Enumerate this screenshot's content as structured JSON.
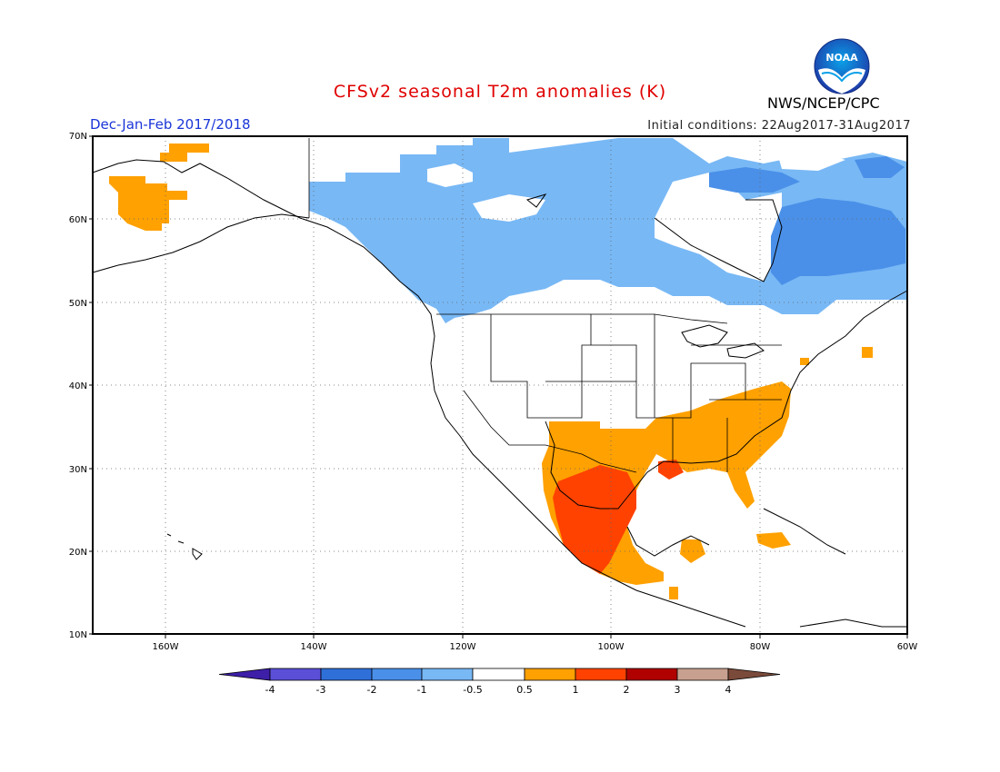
{
  "title": "CFSv2 seasonal T2m anomalies (K)",
  "period": "Dec-Jan-Feb 2017/2018",
  "initial_conditions": "Initial conditions: 22Aug2017-31Aug2017",
  "agency": "NWS/NCEP/CPC",
  "logo_text": "NOAA",
  "lat_labels": [
    "70N",
    "60N",
    "50N",
    "40N",
    "30N",
    "20N",
    "10N"
  ],
  "lon_labels": [
    "160W",
    "140W",
    "120W",
    "100W",
    "80W",
    "60W"
  ],
  "colorbar": {
    "labels": [
      "-4",
      "-3",
      "-2",
      "-1",
      "-0.5",
      "0.5",
      "1",
      "2",
      "3",
      "4"
    ],
    "colors": [
      "#3d1fa8",
      "#5b4fd8",
      "#2f6fd8",
      "#4a90e8",
      "#78b8f5",
      "#ffffff",
      "#ffa100",
      "#ff4200",
      "#b00000",
      "#c8a090",
      "#7a4a3a"
    ]
  },
  "colors": {
    "warm_light": "#ffa100",
    "warm_strong": "#ff4200",
    "cool_light": "#78b8f5",
    "cool_medium": "#4a90e8",
    "coast": "#000000"
  }
}
